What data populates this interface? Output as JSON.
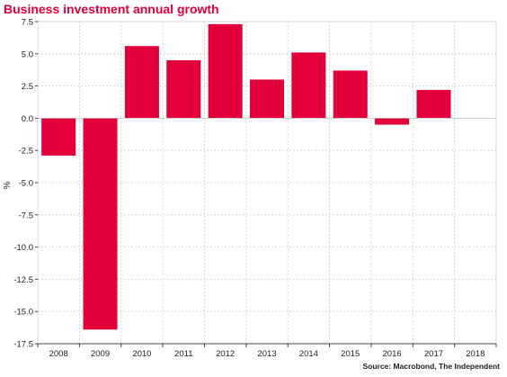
{
  "chart_data": {
    "type": "bar",
    "title": "Business investment annual growth",
    "ylabel": "%",
    "xlabel": "",
    "source": "Source: Macrobond, The Independent",
    "categories": [
      "2008",
      "2009",
      "2010",
      "2011",
      "2012",
      "2013",
      "2014",
      "2015",
      "2016",
      "2017",
      "2018"
    ],
    "values": [
      -2.9,
      -16.4,
      5.6,
      4.5,
      7.3,
      3.0,
      5.1,
      3.7,
      -0.5,
      2.2,
      null
    ],
    "ylim": [
      -17.5,
      7.5
    ],
    "yticks": [
      7.5,
      5.0,
      2.5,
      0.0,
      -2.5,
      -5.0,
      -7.5,
      -10.0,
      -12.5,
      -15.0,
      -17.5
    ],
    "ytick_labels": [
      "7.5",
      "5.0",
      "2.5",
      "0.0",
      "-2.5",
      "-5.0",
      "-7.5",
      "-10.0",
      "-12.5",
      "-15.0",
      "-17.5"
    ],
    "grid": true,
    "legend": "none",
    "bar_color": "#e3003a",
    "title_color": "#e3003a"
  }
}
